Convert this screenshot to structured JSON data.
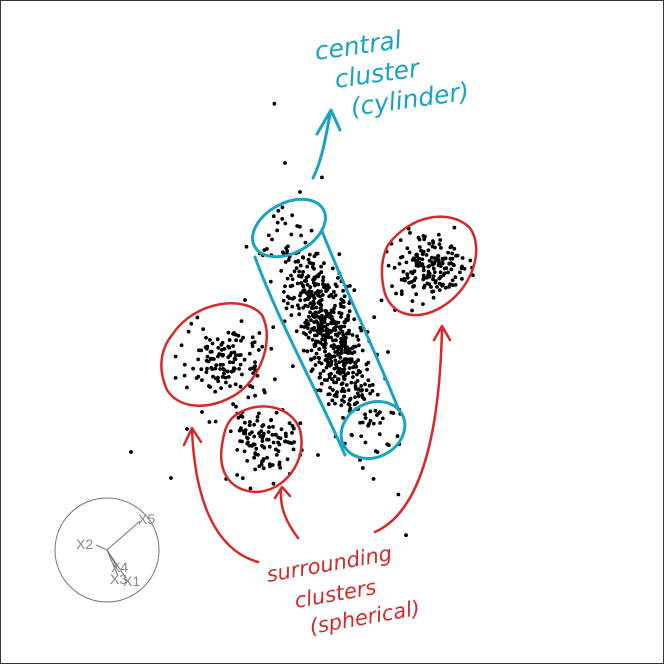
{
  "annotations": {
    "central": {
      "lines": [
        "central",
        "cluster",
        "(cylinder)"
      ],
      "color": "#1aa3c2"
    },
    "surrounding": {
      "lines": [
        "surrounding",
        "clusters",
        "(spherical)"
      ],
      "color": "#d62a2a"
    }
  },
  "axes_legend": {
    "labels": [
      "X5",
      "X2",
      "X4",
      "X3",
      "X1"
    ],
    "line_color": "#777777",
    "label_color": "#888888"
  },
  "colors": {
    "points": "#000000",
    "background": "#ffffff"
  }
}
